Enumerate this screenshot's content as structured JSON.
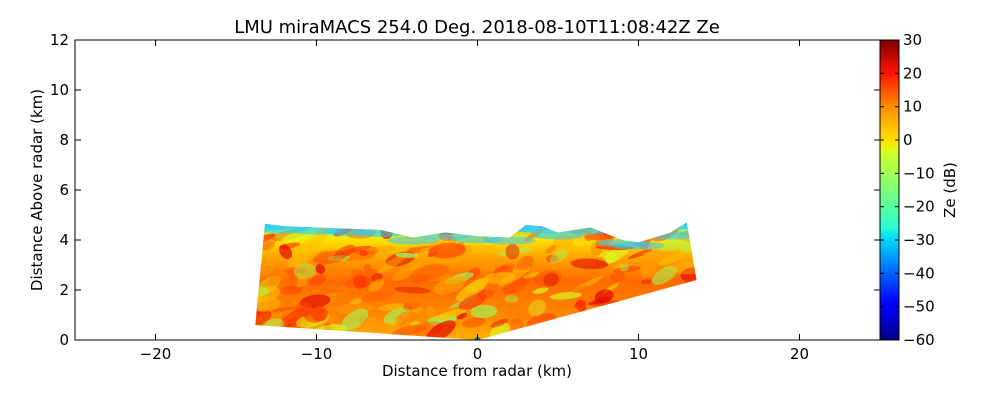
{
  "chart_data": {
    "type": "heatmap",
    "title": "LMU miraMACS 254.0 Deg. 2018-08-10T11:08:42Z  Ze",
    "xlabel": "Distance from radar (km)",
    "ylabel": "Distance Above radar  (km)",
    "xlim": [
      -25,
      25
    ],
    "ylim": [
      0,
      12
    ],
    "x_ticks": [
      -20,
      -10,
      0,
      10,
      20
    ],
    "x_tick_labels": [
      "−20",
      "−10",
      "0",
      "10",
      "20"
    ],
    "y_ticks": [
      0,
      2,
      4,
      6,
      8,
      10,
      12
    ],
    "y_tick_labels": [
      "0",
      "2",
      "4",
      "6",
      "8",
      "10",
      "12"
    ],
    "colorbar": {
      "label": "Ze (dB)",
      "colormap": "jet",
      "range": [
        -60,
        30
      ],
      "ticks": [
        30,
        20,
        10,
        0,
        -10,
        -20,
        -30,
        -40,
        -50,
        -60
      ],
      "tick_labels": [
        "30",
        "20",
        "10",
        "0",
        "−10",
        "−20",
        "−30",
        "−40",
        "−50",
        "−60"
      ]
    },
    "echo_region": {
      "description_units": "km",
      "left_bottom": [
        -13.8,
        0.6
      ],
      "left_top": [
        -13.2,
        4.7
      ],
      "right_top": [
        13.0,
        4.7
      ],
      "right_bottom": [
        13.6,
        2.4
      ],
      "radar_origin": [
        0,
        0
      ],
      "cloud_top_profile_km": [
        [
          -13.2,
          4.65
        ],
        [
          -12,
          4.55
        ],
        [
          -10,
          4.5
        ],
        [
          -8,
          4.45
        ],
        [
          -6,
          4.4
        ],
        [
          -4,
          4.1
        ],
        [
          -2,
          4.3
        ],
        [
          0,
          4.15
        ],
        [
          2,
          4.1
        ],
        [
          3,
          4.6
        ],
        [
          4,
          4.55
        ],
        [
          5,
          4.3
        ],
        [
          7,
          4.5
        ],
        [
          9,
          4.0
        ],
        [
          10,
          3.9
        ],
        [
          12,
          4.3
        ],
        [
          13.0,
          4.7
        ]
      ],
      "typical_ze_dB": [
        0,
        25
      ]
    }
  }
}
